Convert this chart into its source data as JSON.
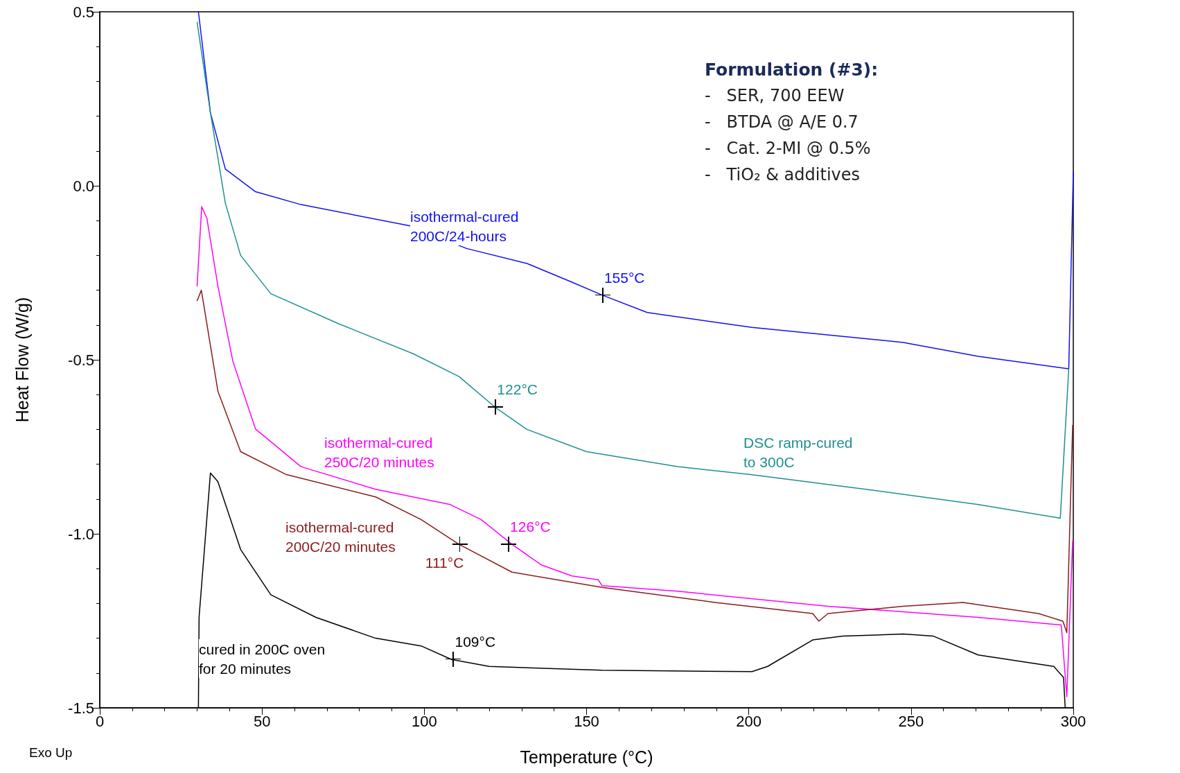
{
  "chart_data": {
    "type": "line",
    "xlabel": "Temperature (°C)",
    "ylabel": "Heat Flow (W/g)",
    "xlim": [
      0,
      300
    ],
    "ylim": [
      -1.5,
      0.5
    ],
    "xticks": [
      0,
      50,
      100,
      150,
      200,
      250,
      300
    ],
    "yticks": [
      {
        "value": -1.5,
        "label": "-1.5"
      },
      {
        "value": -1,
        "label": "-1.0"
      },
      {
        "value": -0.5,
        "label": "-0.5"
      },
      {
        "value": 0,
        "label": "0.0"
      },
      {
        "value": 0.5,
        "label": "0.5"
      }
    ],
    "grid": false,
    "series": [
      {
        "type": "line",
        "marker": "none",
        "color": "#1010f0",
        "x": [
          30.4,
          34.1,
          38.7,
          48,
          62,
          95.6,
          113,
          131.6,
          145.5,
          154.8,
          168.7,
          201,
          247.6,
          270.7,
          298.6,
          300
        ],
        "values": [
          0.5,
          0.21,
          0.048,
          -0.017,
          -0.054,
          -0.115,
          -0.18,
          -0.223,
          -0.277,
          -0.314,
          -0.364,
          -0.407,
          -0.45,
          -0.49,
          -0.526,
          0.04
        ]
      },
      {
        "type": "line",
        "marker": "none",
        "color": "#1f8f8f",
        "x": [
          30,
          34.1,
          38.7,
          43.4,
          52.7,
          73.5,
          96.7,
          110.7,
          121.8,
          131.6,
          150,
          178,
          201,
          236,
          270.7,
          296,
          298.6
        ],
        "values": [
          0.47,
          0.21,
          -0.05,
          -0.2,
          -0.31,
          -0.396,
          -0.483,
          -0.548,
          -0.636,
          -0.7,
          -0.764,
          -0.807,
          -0.83,
          -0.872,
          -0.916,
          -0.955,
          -0.526
        ]
      },
      {
        "type": "line",
        "marker": "none",
        "color": "#ff00ff",
        "x": [
          30,
          31.4,
          33,
          36.4,
          41,
          48,
          62,
          85,
          108,
          117.5,
          127,
          136,
          145.5,
          153.6,
          154.8,
          178,
          224.4,
          270.7,
          296.3,
          298,
          299.8
        ],
        "values": [
          -0.288,
          -0.06,
          -0.093,
          -0.288,
          -0.504,
          -0.699,
          -0.807,
          -0.872,
          -0.916,
          -0.959,
          -1.03,
          -1.089,
          -1.121,
          -1.132,
          -1.149,
          -1.165,
          -1.208,
          -1.24,
          -1.262,
          -1.468,
          -1.02
        ]
      },
      {
        "type": "line",
        "marker": "none",
        "color": "#8b1a1a",
        "x": [
          30,
          31.3,
          36.4,
          43.4,
          57.3,
          85,
          99,
          110.7,
          127,
          154.8,
          189.6,
          219.7,
          221.6,
          224.4,
          247.6,
          266,
          289.3,
          296.8,
          298,
          299.8
        ],
        "values": [
          -0.33,
          -0.3,
          -0.59,
          -0.764,
          -0.829,
          -0.894,
          -0.959,
          -1.03,
          -1.11,
          -1.154,
          -1.197,
          -1.229,
          -1.251,
          -1.229,
          -1.208,
          -1.197,
          -1.229,
          -1.251,
          -1.284,
          -0.688
        ]
      },
      {
        "type": "line",
        "marker": "none",
        "color": "#000000",
        "x": [
          30.4,
          30.6,
          34.1,
          36.4,
          43.4,
          52.7,
          66.6,
          85,
          99,
          108.4,
          120,
          154.8,
          201,
          205.8,
          219.7,
          229,
          247.6,
          256.9,
          270.7,
          294,
          297,
          297.5
        ],
        "values": [
          -1.5,
          -1.24,
          -0.825,
          -0.85,
          -1.045,
          -1.175,
          -1.24,
          -1.3,
          -1.322,
          -1.361,
          -1.381,
          -1.392,
          -1.396,
          -1.381,
          -1.305,
          -1.294,
          -1.288,
          -1.294,
          -1.348,
          -1.381,
          -1.413,
          -1.5
        ]
      }
    ],
    "annotations": [
      {
        "text": "155°C",
        "x": 155,
        "y": -0.314
      },
      {
        "text": "122°C",
        "x": 122,
        "y": -0.636
      },
      {
        "text": "126°C",
        "x": 126,
        "y": -1.03
      },
      {
        "text": "111°C",
        "x": 111,
        "y": -1.03
      },
      {
        "text": "109°C",
        "x": 109,
        "y": -1.36
      },
      "isothermal-cured\n200C/24-hours",
      "DSC ramp-cured\nto 300C",
      "isothermal-cured\n250C/20 minutes",
      "isothermal-cured\n200C/20 minutes",
      "cured in 200C oven\nfor 20 minutes",
      "Formulation (#3):",
      "-   SER, 700 EEW",
      "-   BTDA @ A/E 0.7",
      "-   Cat. 2-MI @ 0.5%",
      "-   TiO₂ & additives",
      "Exo Up"
    ]
  }
}
